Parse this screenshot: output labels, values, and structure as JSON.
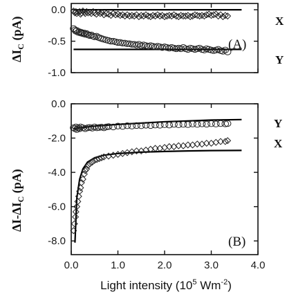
{
  "chart_data": [
    {
      "type": "scatter",
      "panel_label": "(A)",
      "ylabel_main": "ΔI",
      "ylabel_sub": "C",
      "ylabel_unit": " (pA)",
      "xlim": [
        0,
        4.0
      ],
      "ylim": [
        -1.0,
        0.1
      ],
      "yticks": [
        "0.0",
        "-0.5",
        "-1.0"
      ],
      "ytick_values": [
        0.0,
        -0.5,
        -1.0
      ],
      "series": [
        {
          "name": "X",
          "marker": "diamond",
          "x": [
            0.05,
            0.08,
            0.1,
            0.12,
            0.15,
            0.18,
            0.2,
            0.22,
            0.25,
            0.28,
            0.3,
            0.33,
            0.36,
            0.4,
            0.43,
            0.47,
            0.5,
            0.54,
            0.58,
            0.62,
            0.66,
            0.7,
            0.75,
            0.8,
            0.85,
            0.9,
            0.95,
            1.0,
            1.05,
            1.1,
            1.15,
            1.2,
            1.25,
            1.3,
            1.35,
            1.4,
            1.45,
            1.5,
            1.55,
            1.6,
            1.65,
            1.7,
            1.75,
            1.8,
            1.85,
            1.9,
            1.95,
            2.0,
            2.05,
            2.1,
            2.15,
            2.2,
            2.25,
            2.3,
            2.35,
            2.4,
            2.45,
            2.5,
            2.55,
            2.6,
            2.65,
            2.7,
            2.75,
            2.8,
            2.85,
            2.9,
            2.95,
            3.0,
            3.05,
            3.1,
            3.15,
            3.2,
            3.25,
            3.3,
            3.35
          ],
          "y": [
            -0.02,
            -0.05,
            -0.03,
            -0.06,
            -0.04,
            -0.03,
            -0.07,
            -0.05,
            -0.02,
            -0.04,
            -0.06,
            -0.03,
            -0.05,
            -0.04,
            -0.06,
            -0.03,
            -0.05,
            -0.07,
            -0.04,
            -0.06,
            -0.05,
            -0.08,
            -0.06,
            -0.07,
            -0.09,
            -0.06,
            -0.08,
            -0.07,
            -0.09,
            -0.08,
            -0.1,
            -0.08,
            -0.1,
            -0.09,
            -0.1,
            -0.08,
            -0.11,
            -0.09,
            -0.1,
            -0.08,
            -0.1,
            -0.11,
            -0.09,
            -0.1,
            -0.08,
            -0.1,
            -0.09,
            -0.11,
            -0.1,
            -0.09,
            -0.1,
            -0.08,
            -0.1,
            -0.11,
            -0.09,
            -0.1,
            -0.1,
            -0.09,
            -0.11,
            -0.1,
            -0.08,
            -0.09,
            -0.1,
            -0.09,
            -0.1,
            -0.08,
            -0.07,
            -0.09,
            -0.08,
            -0.07,
            -0.1,
            -0.08,
            -0.11,
            -0.09,
            -0.1
          ],
          "fit_line_y": 0.0
        },
        {
          "name": "Y",
          "marker": "circle",
          "x": [
            0.05,
            0.08,
            0.1,
            0.12,
            0.15,
            0.18,
            0.2,
            0.22,
            0.25,
            0.28,
            0.3,
            0.33,
            0.36,
            0.4,
            0.43,
            0.47,
            0.5,
            0.54,
            0.58,
            0.62,
            0.66,
            0.7,
            0.75,
            0.8,
            0.85,
            0.9,
            0.95,
            1.0,
            1.05,
            1.1,
            1.15,
            1.2,
            1.25,
            1.3,
            1.35,
            1.4,
            1.45,
            1.5,
            1.55,
            1.6,
            1.65,
            1.7,
            1.75,
            1.8,
            1.85,
            1.9,
            1.95,
            2.0,
            2.05,
            2.1,
            2.15,
            2.2,
            2.25,
            2.3,
            2.35,
            2.4,
            2.45,
            2.5,
            2.55,
            2.6,
            2.65,
            2.7,
            2.75,
            2.8,
            2.85,
            2.9,
            2.95,
            3.0,
            3.05,
            3.1,
            3.15,
            3.2,
            3.25,
            3.3,
            3.35
          ],
          "y": [
            -0.3,
            -0.32,
            -0.34,
            -0.33,
            -0.36,
            -0.35,
            -0.37,
            -0.36,
            -0.38,
            -0.37,
            -0.39,
            -0.38,
            -0.4,
            -0.41,
            -0.4,
            -0.42,
            -0.43,
            -0.42,
            -0.44,
            -0.45,
            -0.46,
            -0.47,
            -0.48,
            -0.49,
            -0.5,
            -0.5,
            -0.51,
            -0.52,
            -0.52,
            -0.53,
            -0.53,
            -0.54,
            -0.54,
            -0.55,
            -0.55,
            -0.56,
            -0.55,
            -0.57,
            -0.56,
            -0.57,
            -0.58,
            -0.57,
            -0.58,
            -0.59,
            -0.58,
            -0.59,
            -0.6,
            -0.59,
            -0.6,
            -0.61,
            -0.6,
            -0.61,
            -0.62,
            -0.61,
            -0.62,
            -0.6,
            -0.62,
            -0.63,
            -0.61,
            -0.62,
            -0.63,
            -0.62,
            -0.61,
            -0.63,
            -0.64,
            -0.62,
            -0.63,
            -0.64,
            -0.65,
            -0.64,
            -0.63,
            -0.65,
            -0.66,
            -0.64,
            -0.67
          ],
          "fit_line_y": -0.63
        }
      ]
    },
    {
      "type": "scatter",
      "panel_label": "(B)",
      "ylabel_main": "ΔI-ΔI",
      "ylabel_sub": "C",
      "ylabel_unit": " (pA)",
      "xlabel_text": "Light intensity (10",
      "xlabel_sup1": "5",
      "xlabel_mid": " Wm",
      "xlabel_sup2": "-2",
      "xlabel_end": ")",
      "xlim": [
        0,
        4.0
      ],
      "ylim": [
        -8.8,
        0.0
      ],
      "xticks": [
        "0.0",
        "1.0",
        "2.0",
        "3.0",
        "4.0"
      ],
      "xtick_values": [
        0,
        1,
        2,
        3,
        4
      ],
      "yticks": [
        "0.0",
        "-2.0",
        "-4.0",
        "-6.0",
        "-8.0"
      ],
      "ytick_values": [
        0,
        -2,
        -4,
        -6,
        -8
      ],
      "series": [
        {
          "name": "Y",
          "marker": "circle",
          "x": [
            0.05,
            0.08,
            0.1,
            0.12,
            0.15,
            0.18,
            0.2,
            0.25,
            0.3,
            0.35,
            0.4,
            0.45,
            0.5,
            0.55,
            0.6,
            0.65,
            0.7,
            0.75,
            0.8,
            0.9,
            1.0,
            1.1,
            1.2,
            1.3,
            1.4,
            1.5,
            1.6,
            1.7,
            1.8,
            1.9,
            2.0,
            2.1,
            2.2,
            2.3,
            2.4,
            2.5,
            2.6,
            2.7,
            2.8,
            2.9,
            3.0,
            3.1,
            3.2,
            3.3,
            3.35
          ],
          "y": [
            -1.4,
            -1.45,
            -1.35,
            -1.5,
            -1.4,
            -1.45,
            -1.35,
            -1.4,
            -1.45,
            -1.4,
            -1.38,
            -1.42,
            -1.35,
            -1.4,
            -1.38,
            -1.36,
            -1.4,
            -1.35,
            -1.33,
            -1.35,
            -1.3,
            -1.32,
            -1.28,
            -1.3,
            -1.27,
            -1.28,
            -1.25,
            -1.27,
            -1.24,
            -1.25,
            -1.22,
            -1.24,
            -1.2,
            -1.22,
            -1.2,
            -1.21,
            -1.18,
            -1.2,
            -1.17,
            -1.19,
            -1.16,
            -1.18,
            -1.15,
            -1.17,
            -1.15
          ],
          "fit": {
            "x": [
              0.05,
              0.2,
              0.5,
              1.0,
              2.0,
              3.0,
              3.65
            ],
            "y": [
              -1.45,
              -1.4,
              -1.3,
              -1.2,
              -1.05,
              -0.95,
              -0.92
            ]
          }
        },
        {
          "name": "X",
          "marker": "diamond",
          "x": [
            0.05,
            0.07,
            0.09,
            0.1,
            0.12,
            0.14,
            0.16,
            0.18,
            0.2,
            0.22,
            0.25,
            0.28,
            0.3,
            0.33,
            0.36,
            0.4,
            0.45,
            0.5,
            0.55,
            0.6,
            0.65,
            0.7,
            0.8,
            0.9,
            1.0,
            1.1,
            1.2,
            1.3,
            1.4,
            1.5,
            1.6,
            1.7,
            1.8,
            1.9,
            2.0,
            2.1,
            2.2,
            2.3,
            2.4,
            2.5,
            2.6,
            2.7,
            2.8,
            2.9,
            3.0,
            3.1,
            3.2,
            3.3,
            3.35
          ],
          "y": [
            -7.4,
            -7.0,
            -6.6,
            -6.3,
            -6.0,
            -5.7,
            -5.4,
            -5.1,
            -4.9,
            -4.6,
            -4.4,
            -4.1,
            -3.9,
            -3.8,
            -3.6,
            -3.5,
            -3.4,
            -3.3,
            -3.25,
            -3.2,
            -3.15,
            -3.1,
            -3.05,
            -3.0,
            -2.95,
            -2.9,
            -2.85,
            -2.8,
            -2.75,
            -2.75,
            -2.7,
            -2.65,
            -2.6,
            -2.6,
            -2.55,
            -2.5,
            -2.5,
            -2.45,
            -2.45,
            -2.4,
            -2.4,
            -2.35,
            -2.35,
            -2.3,
            -2.3,
            -2.25,
            -2.2,
            -2.2,
            -2.15
          ],
          "fit": {
            "x": [
              0.08,
              0.12,
              0.18,
              0.25,
              0.35,
              0.5,
              0.7,
              1.0,
              1.5,
              2.0,
              2.5,
              3.0,
              3.65
            ],
            "y": [
              -8.1,
              -5.5,
              -4.4,
              -3.8,
              -3.4,
              -3.15,
              -3.0,
              -2.9,
              -2.82,
              -2.78,
              -2.75,
              -2.73,
              -2.72
            ]
          }
        }
      ]
    }
  ]
}
